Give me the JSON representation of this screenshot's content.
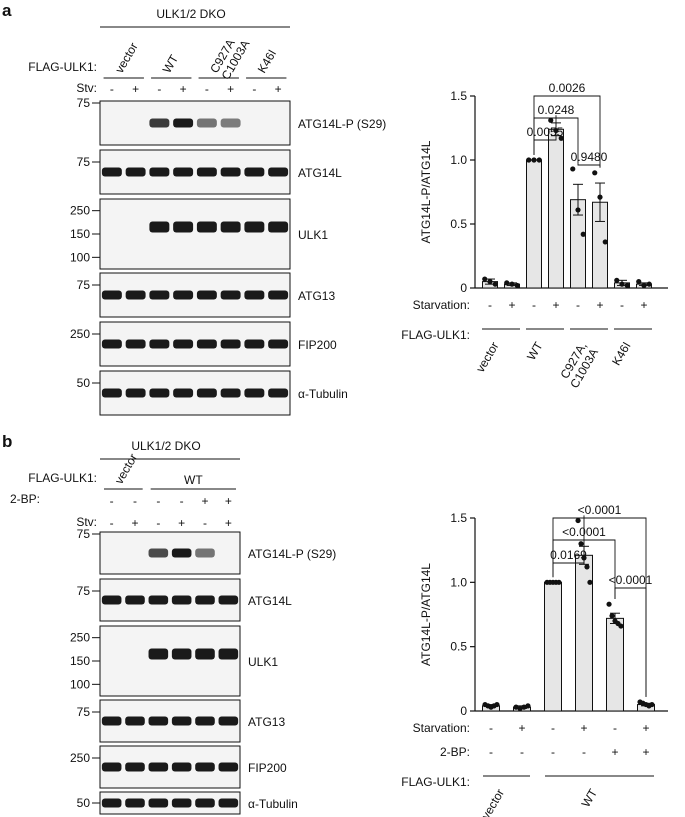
{
  "panel_a": {
    "letter": "a",
    "group_label": "ULK1/2 DKO",
    "flag_label": "FLAG-ULK1:",
    "stv_label": "Stv:",
    "groups": [
      "vector",
      "WT",
      "C927A\nC1003A",
      "K46I"
    ],
    "stv_signs": [
      "-",
      "+",
      "-",
      "+",
      "-",
      "+",
      "-",
      "+"
    ],
    "blots": [
      {
        "name": "ATG14L-P (S29)",
        "markers": [
          "75"
        ]
      },
      {
        "name": "ATG14L",
        "markers": [
          "75"
        ]
      },
      {
        "name": "ULK1",
        "markers": [
          "250",
          "150",
          "100"
        ]
      },
      {
        "name": "ATG13",
        "markers": [
          "75"
        ]
      },
      {
        "name": "FIP200",
        "markers": [
          "250"
        ]
      },
      {
        "name": "α-Tubulin",
        "markers": [
          "50"
        ]
      }
    ],
    "band_intensity": {
      "ATG14L-P (S29)": [
        0,
        0,
        0.8,
        1.0,
        0.45,
        0.4,
        0,
        0
      ],
      "ATG14L": [
        1,
        1,
        1,
        1,
        1,
        1,
        1,
        1
      ],
      "ULK1": [
        0,
        0,
        1,
        1,
        1,
        1,
        1,
        1
      ],
      "ATG13": [
        1,
        1,
        1,
        1,
        1,
        1,
        1,
        1
      ],
      "FIP200": [
        1,
        1,
        1,
        1,
        1,
        1,
        1,
        1
      ],
      "α-Tubulin": [
        1,
        1,
        1,
        1,
        1,
        1,
        1,
        1
      ]
    }
  },
  "panel_b": {
    "letter": "b",
    "group_label": "ULK1/2 DKO",
    "flag_label": "FLAG-ULK1:",
    "bp_label": "2-BP:",
    "stv_label": "Stv:",
    "groups": [
      "vector",
      "WT"
    ],
    "bp_signs": [
      "-",
      "-",
      "-",
      "-",
      "+",
      "+"
    ],
    "stv_signs": [
      "-",
      "+",
      "-",
      "+",
      "-",
      "+"
    ],
    "blots": [
      {
        "name": "ATG14L-P (S29)",
        "markers": [
          "75"
        ]
      },
      {
        "name": "ATG14L",
        "markers": [
          "75"
        ]
      },
      {
        "name": "ULK1",
        "markers": [
          "250",
          "150",
          "100"
        ]
      },
      {
        "name": "ATG13",
        "markers": [
          "75"
        ]
      },
      {
        "name": "FIP200",
        "markers": [
          "250"
        ]
      },
      {
        "name": "α-Tubulin",
        "markers": [
          "50"
        ]
      }
    ],
    "band_intensity": {
      "ATG14L-P (S29)": [
        0,
        0,
        0.7,
        1.0,
        0.45,
        0
      ],
      "ATG14L": [
        1,
        1,
        1,
        1,
        1,
        1
      ],
      "ULK1": [
        0,
        0,
        1,
        1,
        1,
        1
      ],
      "ATG13": [
        1,
        1,
        1,
        1,
        1,
        1
      ],
      "FIP200": [
        1,
        1,
        1,
        1,
        1,
        1
      ],
      "α-Tubulin": [
        1,
        1,
        1,
        1,
        1,
        1
      ]
    }
  },
  "chart_data": [
    {
      "type": "bar",
      "ylabel": "ATG14L-P/ATG14L",
      "ylim": [
        0,
        1.5
      ],
      "yticks": [
        "0",
        "0.5",
        "1.0",
        "1.5"
      ],
      "row_labels": [
        "Starvation:",
        "FLAG-ULK1:"
      ],
      "starvation_signs": [
        "-",
        "+",
        "-",
        "+",
        "-",
        "+",
        "-",
        "+"
      ],
      "groups": [
        "vector",
        "WT",
        "C927A,\nC1003A",
        "K46I"
      ],
      "values": [
        0.05,
        0.03,
        1.0,
        1.24,
        0.69,
        0.67,
        0.04,
        0.03
      ],
      "errors": [
        0.02,
        0.01,
        0.0,
        0.05,
        0.12,
        0.15,
        0.02,
        0.01
      ],
      "points": [
        [
          0.07,
          0.05,
          0.03
        ],
        [
          0.04,
          0.03,
          0.02
        ],
        [
          1.0,
          1.0,
          1.0
        ],
        [
          1.31,
          1.23,
          1.17
        ],
        [
          0.93,
          0.61,
          0.42
        ],
        [
          0.9,
          0.71,
          0.36
        ],
        [
          0.06,
          0.03,
          0.02
        ],
        [
          0.05,
          0.02,
          0.03
        ]
      ],
      "annotations": [
        {
          "from": 2,
          "to": 3,
          "label": "0.0055"
        },
        {
          "from": 2,
          "to": 4,
          "label": "0.0248"
        },
        {
          "from": 2,
          "to": 5,
          "label": "0.0026"
        },
        {
          "from": 4,
          "to": 5,
          "label": "0.9480"
        }
      ]
    },
    {
      "type": "bar",
      "ylabel": "ATG14L-P/ATG14L",
      "ylim": [
        0,
        1.5
      ],
      "yticks": [
        "0",
        "0.5",
        "1.0",
        "1.5"
      ],
      "row_labels": [
        "Starvation:",
        "2-BP:",
        "FLAG-ULK1:"
      ],
      "starvation_signs": [
        "-",
        "+",
        "-",
        "+",
        "-",
        "+"
      ],
      "bp_signs": [
        "-",
        "-",
        "-",
        "-",
        "+",
        "+"
      ],
      "groups": [
        "vector",
        "WT"
      ],
      "values": [
        0.04,
        0.03,
        1.0,
        1.21,
        0.72,
        0.05
      ],
      "errors": [
        0.01,
        0.01,
        0.0,
        0.07,
        0.04,
        0.01
      ],
      "points": [
        [
          0.05,
          0.04,
          0.03,
          0.04,
          0.05
        ],
        [
          0.03,
          0.02,
          0.03,
          0.04
        ],
        [
          1.0,
          1.0,
          1.0,
          1.0,
          1.0
        ],
        [
          1.48,
          1.3,
          1.19,
          1.12,
          1.0
        ],
        [
          0.83,
          0.74,
          0.7,
          0.68,
          0.66
        ],
        [
          0.07,
          0.06,
          0.05,
          0.04,
          0.05
        ]
      ],
      "annotations": [
        {
          "from": 2,
          "to": 3,
          "label": "0.0169"
        },
        {
          "from": 2,
          "to": 4,
          "label": "<0.0001"
        },
        {
          "from": 2,
          "to": 5,
          "label": "<0.0001"
        },
        {
          "from": 4,
          "to": 5,
          "label": "<0.0001"
        }
      ]
    }
  ]
}
